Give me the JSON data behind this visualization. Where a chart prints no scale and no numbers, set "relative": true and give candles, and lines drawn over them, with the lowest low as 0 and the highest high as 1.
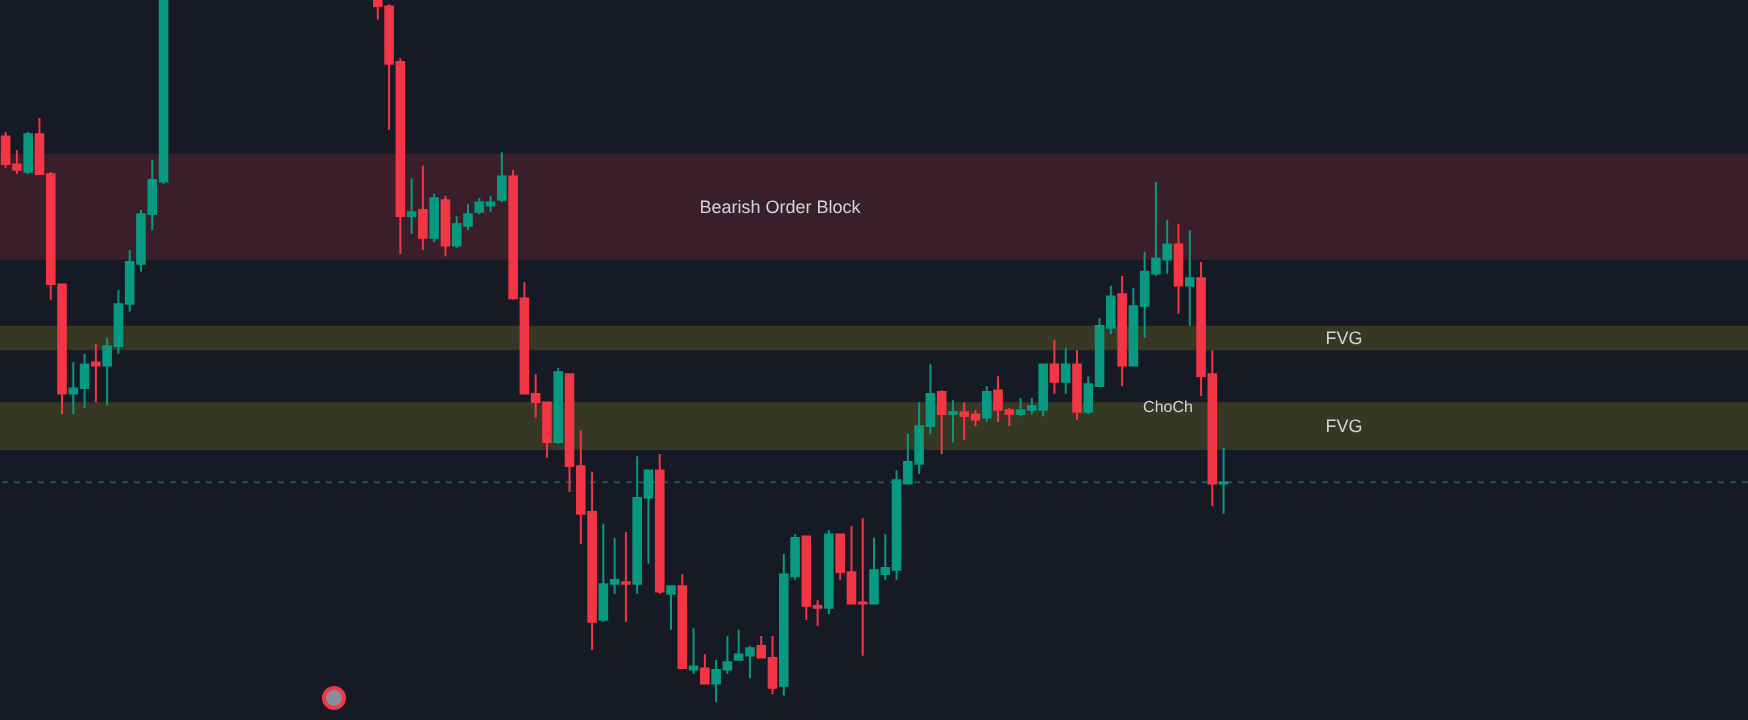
{
  "chart_data": {
    "type": "candlestick",
    "relative": true,
    "categories": [
      null,
      null,
      null,
      null,
      null,
      null,
      null,
      null,
      null,
      null,
      null,
      null,
      null,
      null,
      null,
      null,
      null,
      null,
      null,
      null,
      null,
      null,
      null,
      null,
      null,
      null,
      null,
      null,
      null,
      null,
      null,
      null,
      null,
      null,
      null,
      null,
      null,
      null,
      null,
      null,
      null,
      null,
      null,
      null,
      null,
      null,
      null,
      null,
      null,
      null,
      null,
      null,
      null,
      null,
      null,
      null,
      null,
      null,
      null,
      null,
      null,
      null,
      null,
      null,
      null,
      null,
      null,
      null,
      null,
      null,
      null,
      null,
      null,
      null,
      null,
      null,
      null,
      null,
      null,
      null,
      null,
      null,
      null,
      null,
      null,
      null,
      null,
      null,
      null,
      null,
      null,
      null,
      null,
      null,
      null,
      null,
      null,
      null,
      null,
      null,
      null,
      null,
      null,
      null,
      null,
      null,
      null,
      null,
      null,
      null,
      null,
      null,
      null,
      null,
      null,
      null,
      null,
      null,
      null,
      null,
      null,
      null,
      null,
      null,
      null,
      null,
      null,
      null,
      null,
      null,
      null,
      null,
      null,
      null,
      null,
      null,
      null,
      null,
      null,
      null,
      null,
      null,
      null,
      null,
      null,
      null,
      null,
      null,
      null,
      null,
      null,
      null,
      null,
      null,
      null
    ],
    "ohlc": [
      [
        0.806,
        0.812,
        0.761,
        0.766
      ],
      [
        0.766,
        0.786,
        0.752,
        0.758
      ],
      [
        0.755,
        0.812,
        0.752,
        0.809
      ],
      [
        0.809,
        0.832,
        0.752,
        0.752
      ],
      [
        0.752,
        0.755,
        0.573,
        0.595
      ],
      [
        0.595,
        0.595,
        0.41,
        0.439
      ],
      [
        0.439,
        0.484,
        0.41,
        0.447
      ],
      [
        0.447,
        0.496,
        0.419,
        0.481
      ],
      [
        0.484,
        0.51,
        0.427,
        0.479
      ],
      [
        0.479,
        0.519,
        0.422,
        0.507
      ],
      [
        0.507,
        0.587,
        0.496,
        0.567
      ],
      [
        0.567,
        0.644,
        0.556,
        0.627
      ],
      [
        0.624,
        0.701,
        0.613,
        0.695
      ],
      [
        0.695,
        0.772,
        0.672,
        0.744
      ],
      [
        0.741,
        1,
        0.738,
        1
      ],
      null,
      null,
      null,
      null,
      null,
      null,
      null,
      null,
      null,
      null,
      null,
      null,
      null,
      null,
      null,
      null,
      null,
      null,
      [
        1,
        1,
        0.972,
        0.991
      ],
      [
        0.991,
        0.994,
        0.815,
        0.909
      ],
      [
        0.912,
        0.917,
        0.638,
        0.692
      ],
      [
        0.692,
        0.746,
        0.667,
        0.698
      ],
      [
        0.701,
        0.764,
        0.644,
        0.661
      ],
      [
        0.661,
        0.724,
        0.655,
        0.718
      ],
      [
        0.715,
        0.721,
        0.635,
        0.65
      ],
      [
        0.65,
        0.692,
        0.647,
        0.681
      ],
      [
        0.678,
        0.709,
        0.672,
        0.695
      ],
      [
        0.698,
        0.718,
        0.695,
        0.712
      ],
      [
        0.707,
        0.721,
        0.698,
        0.712
      ],
      [
        0.715,
        0.783,
        0.712,
        0.749
      ],
      [
        0.749,
        0.758,
        0.573,
        0.575
      ],
      [
        0.575,
        0.598,
        0.439,
        0.439
      ],
      [
        0.439,
        0.467,
        0.405,
        0.427
      ],
      [
        0.427,
        0.427,
        0.348,
        0.37
      ],
      [
        0.37,
        0.476,
        0.368,
        0.47
      ],
      [
        0.467,
        0.467,
        0.299,
        0.336
      ],
      [
        0.336,
        0.387,
        0.225,
        0.268
      ],
      [
        0.271,
        0.328,
        0.074,
        0.114
      ],
      [
        0.117,
        0.254,
        0.114,
        0.168
      ],
      [
        0.168,
        0.234,
        0.154,
        0.174
      ],
      [
        0.171,
        0.242,
        0.114,
        0.168
      ],
      [
        0.168,
        0.35,
        0.154,
        0.291
      ],
      [
        0.291,
        0.33,
        0.197,
        0.33
      ],
      [
        0.33,
        0.353,
        0.154,
        0.157
      ],
      [
        0.154,
        0.165,
        0.103,
        0.165
      ],
      [
        0.165,
        0.182,
        0.048,
        0.048
      ],
      [
        0.046,
        0.105,
        0.04,
        0.051
      ],
      [
        0.048,
        0.068,
        0.026,
        0.026
      ],
      [
        0.026,
        0.06,
        0,
        0.046
      ],
      [
        0.046,
        0.094,
        0.04,
        0.057
      ],
      [
        0.06,
        0.103,
        0.06,
        0.068
      ],
      [
        0.066,
        0.08,
        0.034,
        0.077
      ],
      [
        0.08,
        0.094,
        0.063,
        0.063
      ],
      [
        0.063,
        0.094,
        0.011,
        0.02
      ],
      [
        0.023,
        0.211,
        0.009,
        0.182
      ],
      [
        0.179,
        0.239,
        0.174,
        0.234
      ],
      [
        0.236,
        0.236,
        0.117,
        0.137
      ],
      [
        0.137,
        0.145,
        0.108,
        0.134
      ],
      [
        0.134,
        0.245,
        0.125,
        0.239
      ],
      [
        0.239,
        0.239,
        0.174,
        0.185
      ],
      [
        0.185,
        0.251,
        0.14,
        0.14
      ],
      [
        0.142,
        0.262,
        0.066,
        0.14
      ],
      [
        0.14,
        0.234,
        0.14,
        0.188
      ],
      [
        0.182,
        0.239,
        0.174,
        0.191
      ],
      [
        0.188,
        0.33,
        0.174,
        0.316
      ],
      [
        0.311,
        0.382,
        0.311,
        0.342
      ],
      [
        0.339,
        0.427,
        0.325,
        0.393
      ],
      [
        0.393,
        0.481,
        0.382,
        0.439
      ],
      [
        0.442,
        0.444,
        0.353,
        0.41
      ],
      [
        0.41,
        0.43,
        0.37,
        0.413
      ],
      [
        0.413,
        0.427,
        0.373,
        0.407
      ],
      [
        0.41,
        0.416,
        0.393,
        0.402
      ],
      [
        0.405,
        0.45,
        0.399,
        0.442
      ],
      [
        0.444,
        0.464,
        0.399,
        0.416
      ],
      [
        0.416,
        0.419,
        0.393,
        0.41
      ],
      [
        0.41,
        0.433,
        0.407,
        0.416
      ],
      [
        0.416,
        0.433,
        0.41,
        0.422
      ],
      [
        0.416,
        0.481,
        0.407,
        0.481
      ],
      [
        0.481,
        0.516,
        0.439,
        0.456
      ],
      [
        0.456,
        0.504,
        0.439,
        0.481
      ],
      [
        0.481,
        0.501,
        0.402,
        0.413
      ],
      [
        0.413,
        0.464,
        0.41,
        0.453
      ],
      [
        0.45,
        0.547,
        0.45,
        0.536
      ],
      [
        0.533,
        0.593,
        0.524,
        0.578
      ],
      [
        0.581,
        0.607,
        0.45,
        0.479
      ],
      [
        0.479,
        0.59,
        0.479,
        0.564
      ],
      [
        0.564,
        0.641,
        0.519,
        0.613
      ],
      [
        0.61,
        0.741,
        0.607,
        0.632
      ],
      [
        0.63,
        0.687,
        0.61,
        0.652
      ],
      [
        0.652,
        0.681,
        0.553,
        0.593
      ],
      [
        0.593,
        0.672,
        0.536,
        0.604
      ],
      [
        0.604,
        0.627,
        0.436,
        0.464
      ],
      [
        0.467,
        0.501,
        0.279,
        0.311
      ],
      [
        0.311,
        0.362,
        0.268,
        0.313
      ],
      null,
      null,
      null,
      null,
      null,
      null,
      null,
      null,
      null,
      null,
      null,
      null,
      null,
      null,
      null,
      null,
      null,
      null,
      null,
      null,
      null,
      null,
      null,
      null,
      null,
      null,
      null,
      null,
      null,
      null,
      null,
      null,
      null,
      null,
      null,
      null,
      null,
      null,
      null,
      null,
      null,
      null,
      null,
      null,
      null,
      null
    ],
    "colors": [
      "#f23645",
      "#f23645",
      "#089981",
      "#f23645",
      "#f23645",
      "#f23645",
      "#089981",
      "#089981",
      "#f23645",
      "#089981",
      "#089981",
      "#089981",
      "#089981",
      "#089981",
      "#089981",
      null,
      null,
      null,
      null,
      null,
      null,
      null,
      null,
      null,
      null,
      null,
      null,
      null,
      null,
      null,
      null,
      null,
      null,
      "#f23645",
      "#f23645",
      "#f23645",
      "#089981",
      "#f23645",
      "#089981",
      "#f23645",
      "#089981",
      "#089981",
      "#089981",
      "#089981",
      "#089981",
      "#f23645",
      "#f23645",
      "#f23645",
      "#f23645",
      "#089981",
      "#f23645",
      "#f23645",
      "#f23645",
      "#089981",
      "#089981",
      "#f23645",
      "#089981",
      "#089981",
      "#f23645",
      "#089981",
      "#f23645",
      "#089981",
      "#f23645",
      "#089981",
      "#089981",
      "#089981",
      "#089981",
      "#f23645",
      "#f23645",
      "#089981",
      "#089981",
      "#f23645",
      "#f23645",
      "#089981",
      "#f23645",
      "#f23645",
      "#f23645",
      "#089981",
      "#089981",
      "#089981",
      "#089981",
      "#089981",
      "#089981",
      "#f23645",
      "#089981",
      "#f23645",
      "#f23645",
      "#089981",
      "#f23645",
      "#f23645",
      "#089981",
      "#089981",
      "#089981",
      "#f23645",
      "#089981",
      "#f23645",
      "#089981",
      "#089981",
      "#089981",
      "#f23645",
      "#089981",
      "#089981",
      "#089981",
      "#089981",
      "#f23645",
      "#089981",
      "#f23645",
      "#f23645",
      "#089981",
      null,
      null,
      null,
      null,
      null,
      null,
      null,
      null,
      null,
      null,
      null,
      null,
      null,
      null,
      null,
      null,
      null,
      null,
      null,
      null,
      null,
      null,
      null,
      null,
      null,
      null,
      null,
      null,
      null,
      null,
      null,
      null,
      null,
      null,
      null,
      null,
      null,
      null,
      null,
      null,
      null,
      null,
      null,
      null,
      null,
      null
    ],
    "bands": [
      {
        "axis": "y",
        "from": 0.63,
        "to": 0.781,
        "label": "Bearish Order Block",
        "color": "#3a1f2b"
      },
      {
        "axis": "y",
        "from": 0.501,
        "to": 0.536,
        "label": "FVG",
        "color": "#373823"
      },
      {
        "axis": "y",
        "from": 0.359,
        "to": 0.427,
        "label": "FVG",
        "color": "#373823"
      }
    ],
    "ref_lines": [
      {
        "axis": "y",
        "value": 0.313,
        "color": "#1e5552",
        "line_style": "dashed"
      }
    ],
    "annotations": [
      "ChoCh"
    ]
  }
}
